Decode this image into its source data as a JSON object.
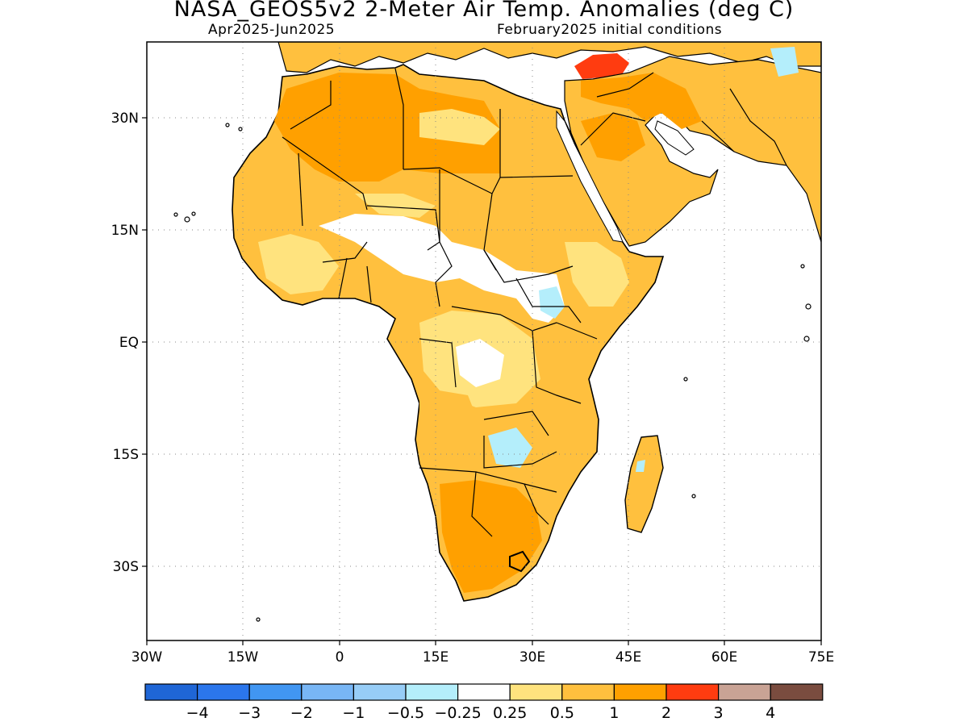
{
  "header": {
    "title": "NASA_GEOS5v2 2-Meter Air Temp. Anomalies (deg C)",
    "period": "Apr2025-Jun2025",
    "init": "February2025 initial conditions"
  },
  "axes": {
    "y_ticks": [
      "30N",
      "15N",
      "EQ",
      "15S",
      "30S"
    ],
    "x_ticks": [
      "30W",
      "15W",
      "0",
      "15E",
      "30E",
      "45E",
      "60E",
      "75E"
    ]
  },
  "colorbar": {
    "colors": [
      "#1f66d6",
      "#2b76ec",
      "#4196f2",
      "#78b6f5",
      "#97cdf7",
      "#b4eefb",
      "#ffffff",
      "#ffe37e",
      "#ffc03e",
      "#ffa000",
      "#ff3c10",
      "#c9a395",
      "#7a4c3f"
    ],
    "labels": [
      "-4",
      "-3",
      "-2",
      "-1",
      "-0.5",
      "-0.25",
      "0.25",
      "0.5",
      "1",
      "2",
      "3",
      "4"
    ]
  },
  "colors": {
    "frame": "#000000",
    "land_warm": "#ffc03e",
    "land_hot": "#ffa000",
    "land_light": "#ffe37e",
    "land_extreme": "#ff3c10",
    "land_cool": "#b4eefb"
  }
}
